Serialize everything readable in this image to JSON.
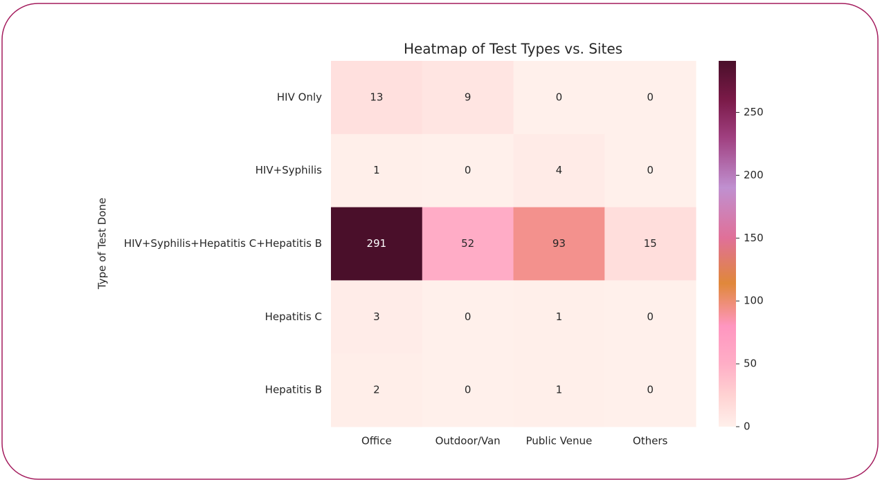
{
  "chart_data": {
    "type": "heatmap",
    "title": "Heatmap of Test Types vs. Sites",
    "y_label": "Type of Test Done",
    "x": [
      "Office",
      "Outdoor/Van",
      "Public Venue",
      "Others"
    ],
    "y": [
      "HIV Only",
      "HIV+Syphilis",
      "HIV+Syphilis+Hepatitis C+Hepatitis B",
      "Hepatitis C",
      "Hepatitis B"
    ],
    "values": [
      [
        13,
        9,
        0,
        0
      ],
      [
        1,
        0,
        4,
        0
      ],
      [
        291,
        52,
        93,
        15
      ],
      [
        3,
        0,
        1,
        0
      ],
      [
        2,
        0,
        1,
        0
      ]
    ],
    "clim": [
      0,
      291
    ],
    "cticks": [
      0,
      50,
      100,
      150,
      200,
      250
    ],
    "colorscale": [
      [
        0,
        "#fff0eb"
      ],
      [
        25,
        "#ffd2d2"
      ],
      [
        50,
        "#ffaec6"
      ],
      [
        80,
        "#ff96c0"
      ],
      [
        114,
        "#e0883a"
      ],
      [
        150,
        "#e07098"
      ],
      [
        190,
        "#c090d0"
      ],
      [
        230,
        "#a04080"
      ],
      [
        260,
        "#7a1a48"
      ],
      [
        291,
        "#4a0f2a"
      ]
    ]
  }
}
